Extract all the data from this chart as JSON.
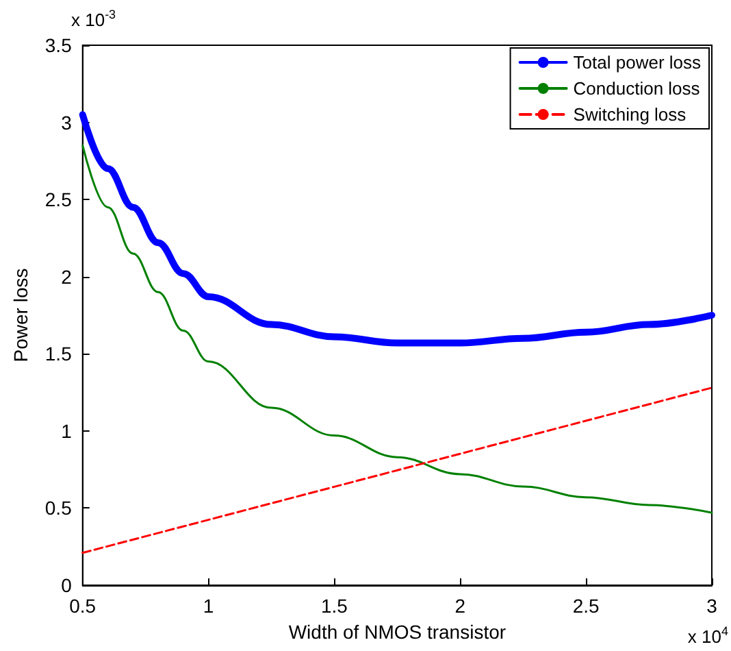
{
  "chart_data": {
    "type": "line",
    "xlabel": "Width of NMOS transistor",
    "ylabel": "Power loss",
    "annotations": [
      "x 10$^{-3}$",
      "x 10$^{4}$"
    ],
    "series": [
      {
        "name": "Total power loss",
        "color": "#0000ff",
        "line_style": "solid",
        "x": [
          0.5,
          0.6,
          0.7,
          0.8,
          0.9,
          1,
          1.25,
          1.5,
          1.75,
          2,
          2.25,
          2.5,
          2.75,
          3
        ],
        "values": [
          3.05,
          2.7,
          2.45,
          2.22,
          2.02,
          1.87,
          1.69,
          1.61,
          1.57,
          1.57,
          1.6,
          1.64,
          1.69,
          1.75
        ]
      },
      {
        "name": "Conduction loss",
        "color": "#008000",
        "line_style": "solid",
        "x": [
          0.5,
          0.6,
          0.7,
          0.8,
          0.9,
          1,
          1.25,
          1.5,
          1.75,
          2,
          2.25,
          2.5,
          2.75,
          3
        ],
        "values": [
          2.85,
          2.45,
          2.15,
          1.9,
          1.65,
          1.45,
          1.15,
          0.97,
          0.83,
          0.72,
          0.64,
          0.57,
          0.52,
          0.47
        ]
      },
      {
        "name": "Switching loss",
        "color": "#ff0000",
        "line_style": "dashed",
        "x": [
          0.5,
          3
        ],
        "values": [
          0.21,
          1.28
        ]
      }
    ],
    "xlim": [
      0.5,
      3
    ],
    "xticks": [
      0.5,
      1,
      1.5,
      2,
      2.5,
      3
    ],
    "ylim": [
      0,
      3.5
    ],
    "yticks": [
      0,
      0.5,
      1,
      1.5,
      2,
      2.5,
      3,
      3.5
    ],
    "grid": false,
    "legend": "top right",
    "marker": "none"
  }
}
